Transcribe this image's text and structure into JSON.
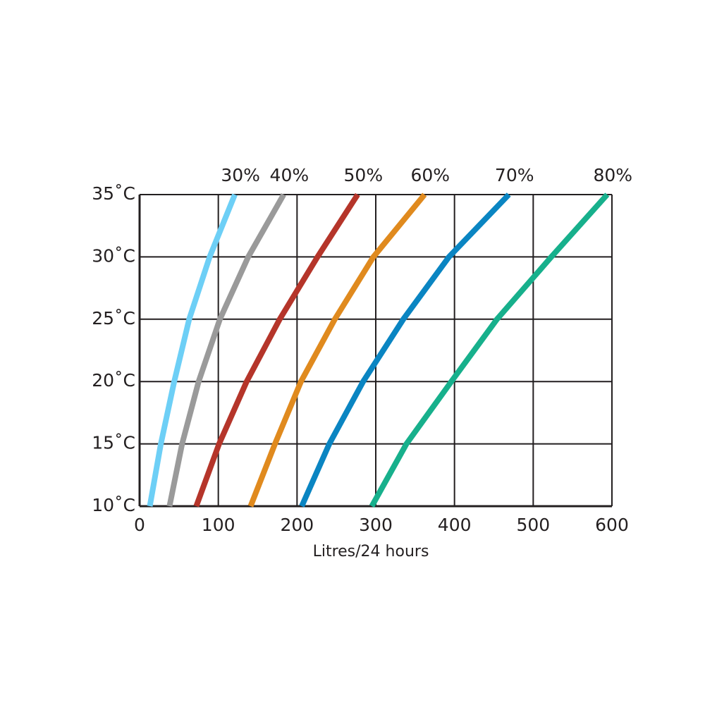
{
  "chart_data": {
    "type": "line",
    "x_label": "Litres/24 hours",
    "xlim": [
      0,
      600
    ],
    "xticks": [
      0,
      100,
      200,
      300,
      400,
      500,
      600
    ],
    "ylim": [
      10,
      35
    ],
    "yticks": [
      {
        "value": 10,
        "label": "10˚C"
      },
      {
        "value": 15,
        "label": "15˚C"
      },
      {
        "value": 20,
        "label": "20˚C"
      },
      {
        "value": 25,
        "label": "25˚C"
      },
      {
        "value": 30,
        "label": "30˚C"
      },
      {
        "value": 35,
        "label": "35˚C"
      }
    ],
    "grid": true,
    "series": [
      {
        "name": "30%",
        "color": "#6dcff6",
        "x": [
          13,
          27,
          44,
          63,
          89,
          121
        ],
        "values": [
          10,
          15,
          20,
          25,
          30,
          35
        ]
      },
      {
        "name": "40%",
        "color": "#9a9a9a",
        "x": [
          38,
          54,
          75,
          102,
          138,
          183
        ],
        "values": [
          10,
          15,
          20,
          25,
          30,
          35
        ]
      },
      {
        "name": "50%",
        "color": "#b5352a",
        "x": [
          72,
          101,
          136,
          178,
          226,
          277
        ],
        "values": [
          10,
          15,
          20,
          25,
          30,
          35
        ]
      },
      {
        "name": "60%",
        "color": "#e08a1e",
        "x": [
          141,
          172,
          205,
          248,
          297,
          362
        ],
        "values": [
          10,
          15,
          20,
          25,
          30,
          35
        ]
      },
      {
        "name": "70%",
        "color": "#0a85c2",
        "x": [
          206,
          241,
          284,
          335,
          393,
          469
        ],
        "values": [
          10,
          15,
          20,
          25,
          30,
          35
        ]
      },
      {
        "name": "80%",
        "color": "#17b08c",
        "x": [
          295,
          339,
          396,
          454,
          523,
          594
        ],
        "values": [
          10,
          15,
          20,
          25,
          30,
          35
        ]
      }
    ]
  }
}
